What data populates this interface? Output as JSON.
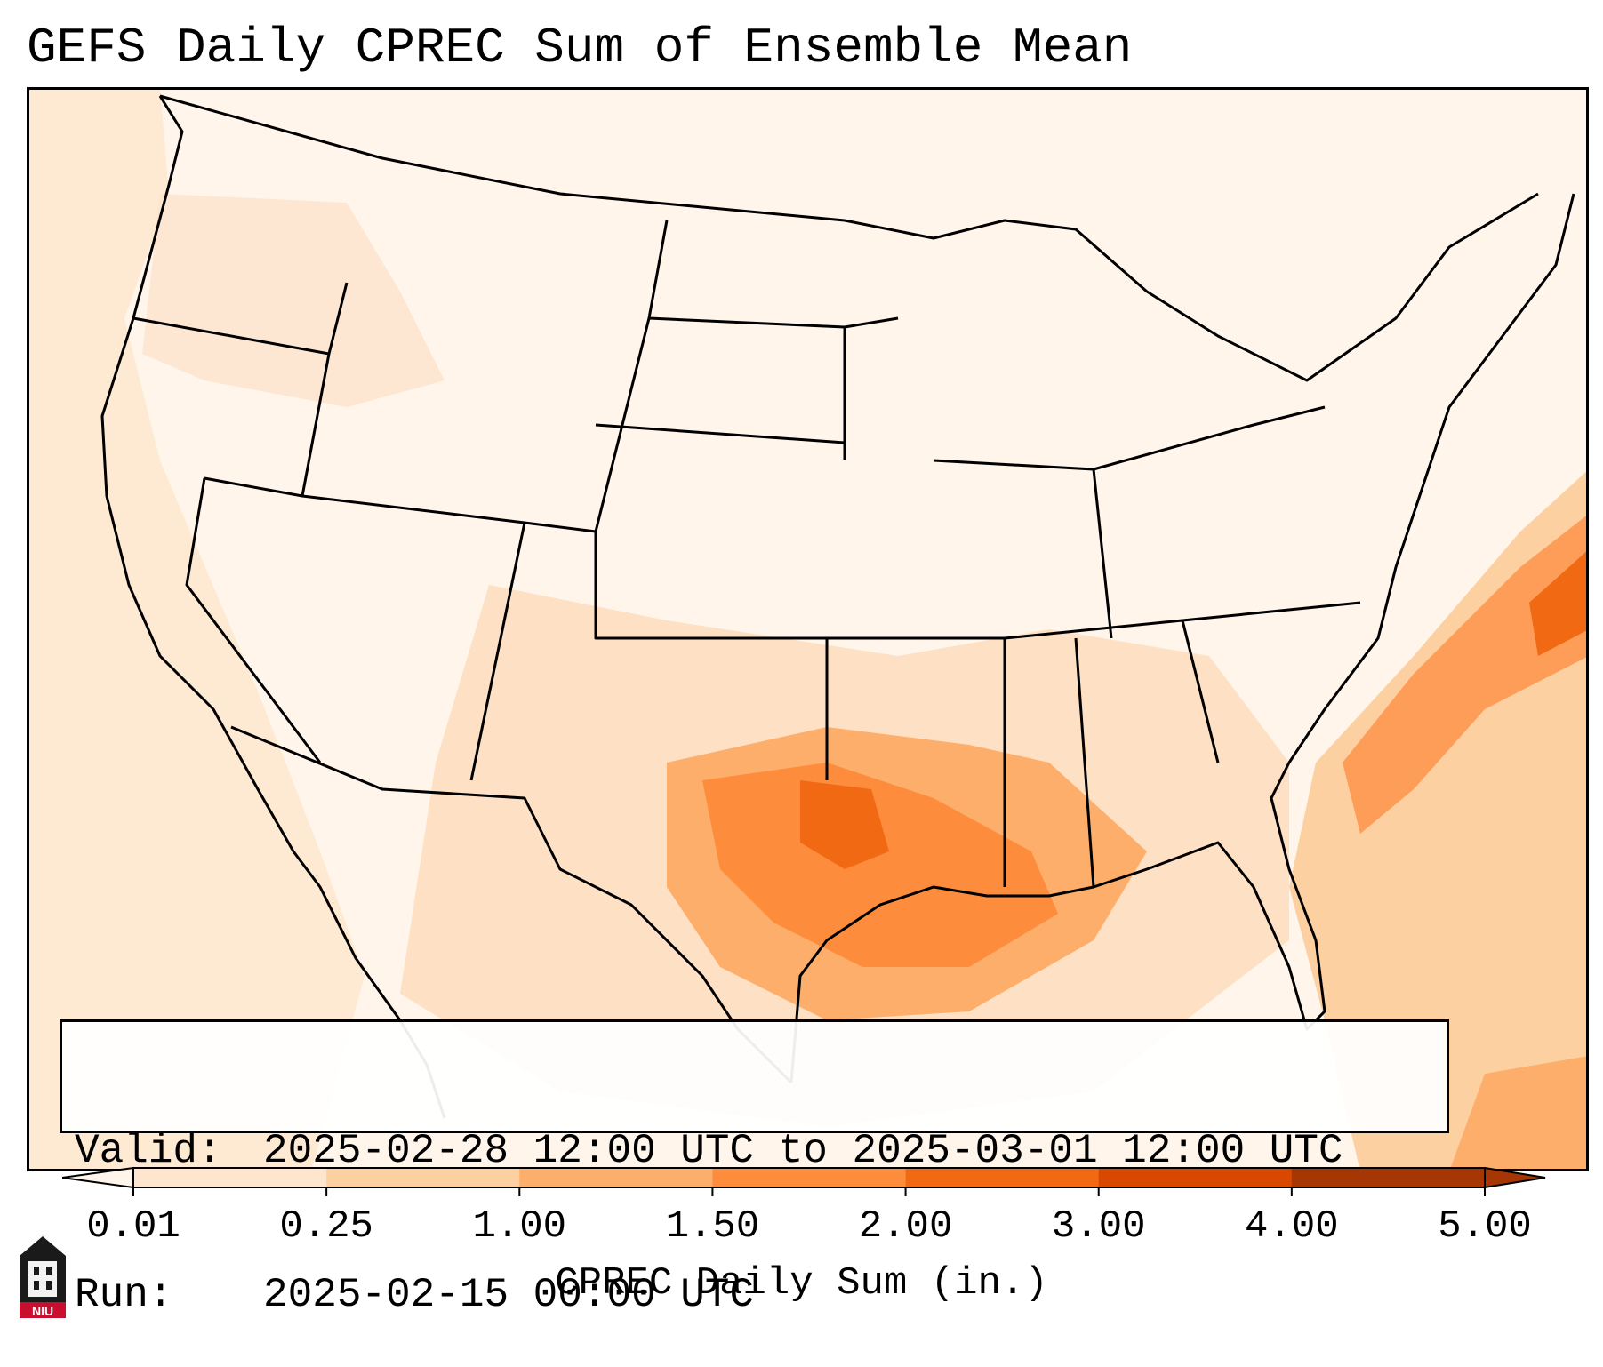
{
  "title": "GEFS Daily CPREC Sum of Ensemble Mean",
  "info": {
    "valid_label": "Valid:",
    "valid_value": "2025-02-28 12:00 UTC to 2025-03-01 12:00 UTC",
    "run_label": "Run:",
    "run_value": "2025-02-15 00:00 UTC"
  },
  "colorbar": {
    "label": "CPREC Daily Sum (in.)",
    "ticks": [
      "0.01",
      "0.25",
      "1.00",
      "1.50",
      "2.00",
      "3.00",
      "4.00",
      "5.00"
    ],
    "colors": [
      "#fff5eb",
      "#fee6ce",
      "#fdd0a2",
      "#fdae6b",
      "#fd8d3c",
      "#f16913",
      "#d94801",
      "#a63603"
    ]
  },
  "map": {
    "region": "Contiguous United States",
    "field": "CPREC daily sum, ensemble mean",
    "max_region": "Texas / Louisiana Gulf Coast and western Atlantic"
  },
  "logo": {
    "text": "NIU",
    "icon": "university-tower-icon"
  }
}
